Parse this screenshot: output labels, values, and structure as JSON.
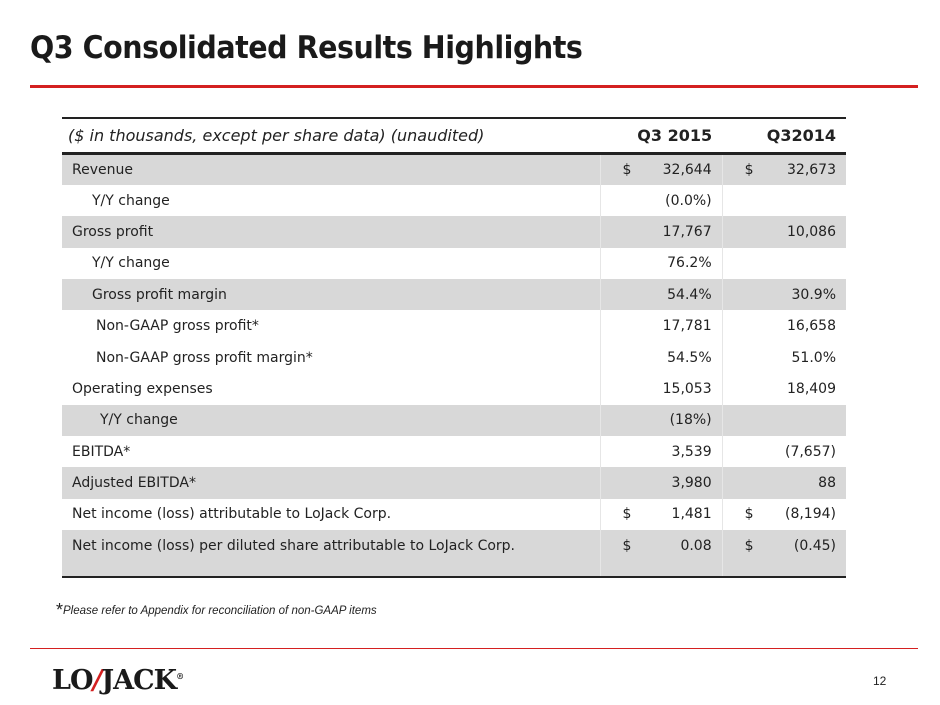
{
  "title": "Q3 Consolidated Results Highlights",
  "table": {
    "headers": [
      "($ in thousands, except per share data) (unaudited)",
      "Q3 2015",
      "Q32014"
    ],
    "rows": [
      {
        "label": "Revenue",
        "d1": "$",
        "v1": "32,644",
        "d2": "$",
        "v2": "32,673"
      },
      {
        "label": "Y/Y change",
        "d1": "",
        "v1": "(0.0%)",
        "d2": "",
        "v2": ""
      },
      {
        "label": "Gross profit",
        "d1": "",
        "v1": "17,767",
        "d2": "",
        "v2": "10,086"
      },
      {
        "label": "Y/Y change",
        "d1": "",
        "v1": "76.2%",
        "d2": "",
        "v2": ""
      },
      {
        "label": "Gross profit margin",
        "d1": "",
        "v1": "54.4%",
        "d2": "",
        "v2": "30.9%"
      },
      {
        "label": "Non-GAAP gross profit*",
        "d1": "",
        "v1": "17,781",
        "d2": "",
        "v2": "16,658"
      },
      {
        "label": "Non-GAAP gross profit margin*",
        "d1": "",
        "v1": "54.5%",
        "d2": "",
        "v2": "51.0%"
      },
      {
        "label": "Operating expenses",
        "d1": "",
        "v1": "15,053",
        "d2": "",
        "v2": "18,409"
      },
      {
        "label": "Y/Y change",
        "d1": "",
        "v1": "(18%)",
        "d2": "",
        "v2": ""
      },
      {
        "label": "EBITDA*",
        "d1": "",
        "v1": "3,539",
        "d2": "",
        "v2": "(7,657)"
      },
      {
        "label": "Adjusted EBITDA*",
        "d1": "",
        "v1": "3,980",
        "d2": "",
        "v2": "88"
      },
      {
        "label": "Net income (loss) attributable to LoJack Corp.",
        "d1": "$",
        "v1": "1,481",
        "d2": "$",
        "v2": "(8,194)"
      },
      {
        "label": "Net income (loss) per diluted share  attributable to LoJack Corp.",
        "d1": "$",
        "v1": "0.08",
        "d2": "$",
        "v2": "(0.45)"
      }
    ]
  },
  "footnote": {
    "star": "*",
    "text": "Please refer to Appendix for reconciliation of non-GAAP items"
  },
  "logo": {
    "left": "LO",
    "right": "JACK",
    "mark": "®"
  },
  "page_number": "12"
}
